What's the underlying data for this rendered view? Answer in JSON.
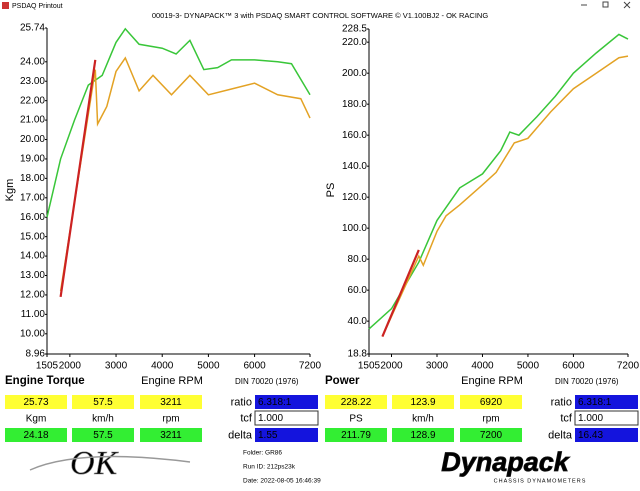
{
  "window": {
    "title": "PSDAQ Printout"
  },
  "header": "00019-3- DYNAPACK™ 3 with PSDAQ SMART CONTROL SOFTWARE © V1.100BJ2 - OK RACING",
  "chart_data": [
    {
      "type": "line",
      "title": "Engine Torque",
      "x_label": "Engine RPM",
      "y_label": "Kgm",
      "xlim": [
        1505,
        7200
      ],
      "xticks": [
        1505,
        2000,
        3000,
        4000,
        5000,
        6000,
        7200
      ],
      "ylim": [
        8.96,
        25.74
      ],
      "yticks": [
        25.74,
        {
          "value": 24,
          "label": "24.00"
        },
        {
          "value": 23,
          "label": "23.00"
        },
        {
          "value": 22,
          "label": "22.00"
        },
        {
          "value": 21,
          "label": "21.00"
        },
        {
          "value": 20,
          "label": "20.00"
        },
        {
          "value": 19,
          "label": "19.00"
        },
        {
          "value": 18,
          "label": "18.00"
        },
        {
          "value": 17,
          "label": "17.00"
        },
        {
          "value": 16,
          "label": "16.00"
        },
        {
          "value": 15,
          "label": "15.00"
        },
        {
          "value": 14,
          "label": "14.00"
        },
        {
          "value": 13,
          "label": "13.00"
        },
        {
          "value": 12,
          "label": "12.00"
        },
        {
          "value": 11,
          "label": "11.00"
        },
        {
          "value": 10,
          "label": "10.00"
        },
        8.96
      ],
      "series": [
        {
          "color": "#39c639",
          "x": [
            1505,
            1800,
            2100,
            2400,
            2700,
            3000,
            3200,
            3500,
            4000,
            4300,
            4600,
            4900,
            5200,
            5500,
            6000,
            6500,
            6800,
            7200
          ],
          "values": [
            16.0,
            19.0,
            21.0,
            22.8,
            23.3,
            25.0,
            25.7,
            24.9,
            24.7,
            24.4,
            25.1,
            23.6,
            23.7,
            24.1,
            24.1,
            24.0,
            23.9,
            22.3
          ]
        },
        {
          "color": "#e3a224",
          "x": [
            1800,
            2550,
            2600,
            2800,
            3000,
            3200,
            3500,
            3800,
            4200,
            4600,
            5000,
            5500,
            6000,
            6500,
            7000,
            7200
          ],
          "values": [
            12.2,
            23.6,
            20.8,
            21.7,
            23.5,
            24.2,
            22.5,
            23.3,
            22.3,
            23.3,
            22.3,
            22.6,
            22.9,
            22.3,
            22.1,
            21.1
          ]
        },
        {
          "color": "#cc2222",
          "x": [
            1800,
            2550
          ],
          "values": [
            11.9,
            24.1
          ]
        }
      ]
    },
    {
      "type": "line",
      "title": "Power",
      "x_label": "Engine RPM",
      "y_label": "PS",
      "xlim": [
        1505,
        7200
      ],
      "xticks": [
        1505,
        2000,
        3000,
        4000,
        5000,
        6000,
        7200
      ],
      "ylim": [
        18.8,
        228.5
      ],
      "yticks": [
        228.5,
        {
          "value": 220,
          "label": "220.0"
        },
        {
          "value": 200,
          "label": "200.0"
        },
        {
          "value": 180,
          "label": "180.0"
        },
        {
          "value": 160,
          "label": "160.0"
        },
        {
          "value": 140,
          "label": "140.0"
        },
        {
          "value": 120,
          "label": "120.0"
        },
        {
          "value": 100,
          "label": "100.0"
        },
        {
          "value": 80,
          "label": "80.0"
        },
        {
          "value": 60,
          "label": "60.0"
        },
        {
          "value": 40,
          "label": "40.0"
        },
        18.8
      ],
      "series": [
        {
          "color": "#39c639",
          "x": [
            1505,
            2000,
            2600,
            3000,
            3500,
            4000,
            4400,
            4600,
            4800,
            5200,
            5600,
            6000,
            6500,
            7000,
            7200
          ],
          "values": [
            35,
            48,
            78,
            105,
            126,
            135,
            150,
            162,
            160,
            172,
            185,
            200,
            213,
            225,
            222
          ]
        },
        {
          "color": "#e3a224",
          "x": [
            1800,
            2600,
            2700,
            3000,
            3200,
            3500,
            4000,
            4300,
            4700,
            5000,
            5500,
            6000,
            6500,
            7000,
            7200
          ],
          "values": [
            30,
            82,
            76,
            98,
            108,
            115,
            128,
            136,
            155,
            158,
            175,
            190,
            200,
            210,
            211
          ]
        },
        {
          "color": "#cc2222",
          "x": [
            1800,
            2600
          ],
          "values": [
            30,
            86
          ]
        }
      ]
    }
  ],
  "readouts": [
    {
      "standard": "DIN 70020 (1976)",
      "max": [
        25.73,
        57.5,
        3211
      ],
      "units": [
        "Kgm",
        "km/h",
        "rpm"
      ],
      "current": [
        24.18,
        57.5,
        3211
      ],
      "ratio_label": "ratio",
      "ratio": "6.318:1",
      "tcf_label": "tcf",
      "tcf": "1.000",
      "delta_label": "delta",
      "delta": 1.55
    },
    {
      "standard": "DIN 70020 (1976)",
      "max": [
        228.22,
        123.9,
        6920
      ],
      "units": [
        "PS",
        "km/h",
        "rpm"
      ],
      "current": [
        211.79,
        128.9,
        7200
      ],
      "ratio_label": "ratio",
      "ratio": "6.318:1",
      "tcf_label": "tcf",
      "tcf": "1.000",
      "delta_label": "delta",
      "delta": 16.43
    }
  ],
  "footer": {
    "folder": "Folder: GR86",
    "run_id": "Run ID: 212ps23k",
    "date": "Date: 2022-08-05 16:46:39",
    "logo": "OK",
    "brand": "Dynapack",
    "brand_sub": "CHASSIS DYNAMOMETERS"
  }
}
